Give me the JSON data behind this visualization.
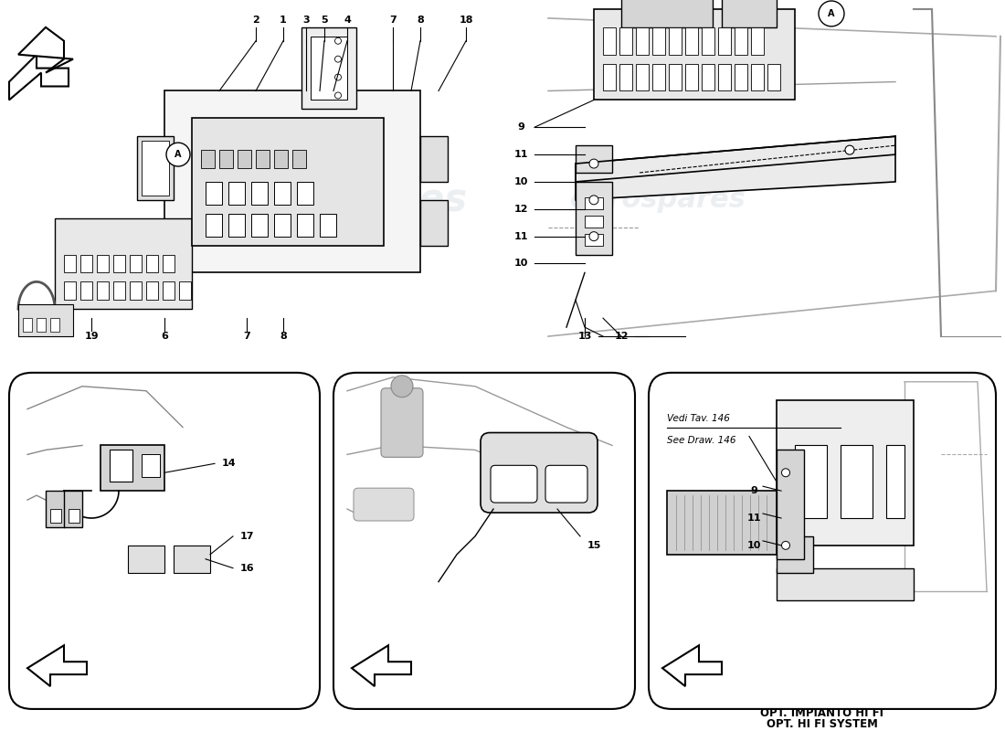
{
  "bg_color": "#ffffff",
  "line_color": "#000000",
  "watermark_color": "#d0d8e0",
  "watermark_text": "eurospares",
  "top_left_numbers_top": [
    [
      "2",
      28,
      77
    ],
    [
      "1",
      31,
      77
    ],
    [
      "3",
      33.5,
      77
    ],
    [
      "5",
      35.5,
      77
    ],
    [
      "4",
      38,
      77
    ],
    [
      "7",
      43,
      77
    ],
    [
      "8",
      46,
      77
    ],
    [
      "18",
      51,
      77
    ]
  ],
  "top_left_numbers_bot": [
    [
      "19",
      10,
      43
    ],
    [
      "6",
      18,
      43
    ],
    [
      "7",
      27,
      43
    ],
    [
      "8",
      31,
      43
    ]
  ],
  "top_right_numbers": [
    [
      "9",
      57,
      66
    ],
    [
      "11",
      57,
      63
    ],
    [
      "10",
      57,
      60
    ],
    [
      "12",
      57,
      57
    ],
    [
      "11",
      57,
      54
    ],
    [
      "10",
      57,
      51
    ],
    [
      "13",
      64,
      43
    ],
    [
      "12",
      68,
      43
    ]
  ],
  "bottom_right_note1": "Vedi Tav. 146",
  "bottom_right_note2": "See Draw. 146",
  "bottom_right_cap1": "OPT. IMPIANTO HI FI",
  "bottom_right_cap2": "OPT. HI FI SYSTEM"
}
